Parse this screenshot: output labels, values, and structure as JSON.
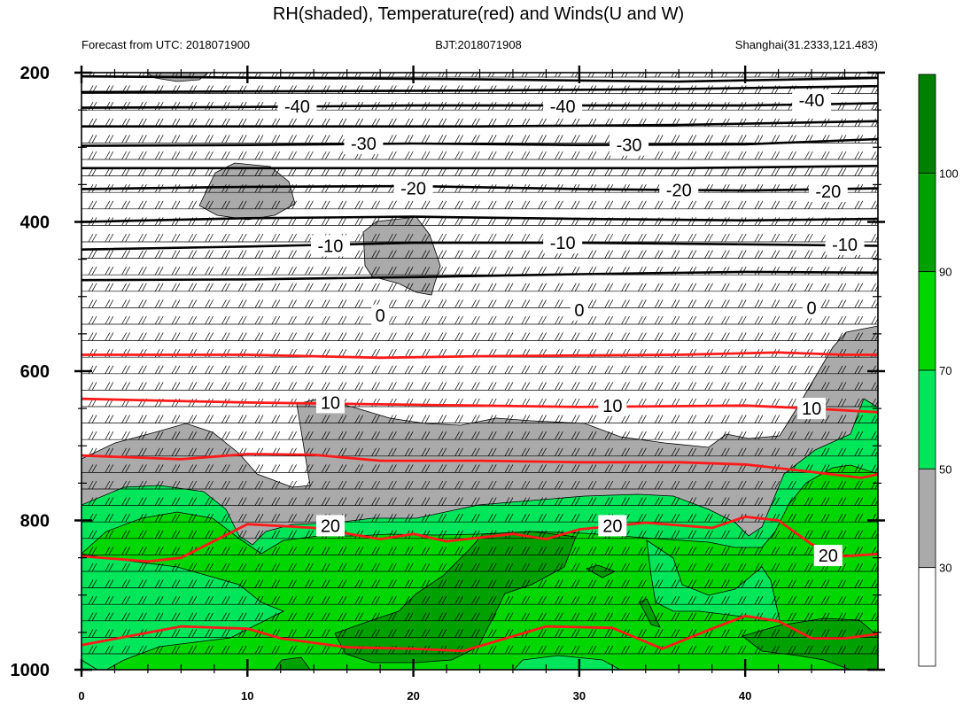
{
  "chart_data": {
    "type": "heatmap",
    "title": "RH(shaded), Temperature(red) and Winds(U and W)",
    "subtitle_left": "Forecast from UTC: 2018071900",
    "subtitle_center": "BJT:2018071908",
    "subtitle_right": "Shanghai(31.2333,121.483)",
    "xlim": [
      0,
      48
    ],
    "ylim": [
      1000,
      200
    ],
    "x_ticks": [
      "0",
      "10",
      "20",
      "30",
      "40"
    ],
    "x_tick_values": [
      0,
      10,
      20,
      30,
      40
    ],
    "y_ticks": [
      "200",
      "400",
      "600",
      "800",
      "1000"
    ],
    "y_tick_values": [
      200,
      400,
      600,
      800,
      1000
    ],
    "colorbar": {
      "labels": [
        "30",
        "50",
        "70",
        "90",
        "100"
      ],
      "level_values": [
        30,
        50,
        70,
        90,
        100
      ],
      "colors": [
        "#ffffff",
        "#aaaaaa",
        "#00e65a",
        "#00d700",
        "#00a000",
        "#008000"
      ]
    },
    "temperature_labels": [
      {
        "text": "-40",
        "x": 13,
        "p": 245,
        "color": "#000000"
      },
      {
        "text": "-40",
        "x": 29,
        "p": 245,
        "color": "#000000"
      },
      {
        "text": "-40",
        "x": 44,
        "p": 237,
        "color": "#000000"
      },
      {
        "text": "-30",
        "x": 17,
        "p": 295,
        "color": "#000000"
      },
      {
        "text": "-30",
        "x": 33,
        "p": 297,
        "color": "#000000"
      },
      {
        "text": "-20",
        "x": 20,
        "p": 355,
        "color": "#000000"
      },
      {
        "text": "-20",
        "x": 36,
        "p": 357,
        "color": "#000000"
      },
      {
        "text": "-20",
        "x": 45,
        "p": 359,
        "color": "#000000"
      },
      {
        "text": "-10",
        "x": 15,
        "p": 432,
        "color": "#000000"
      },
      {
        "text": "-10",
        "x": 29,
        "p": 428,
        "color": "#000000"
      },
      {
        "text": "-10",
        "x": 46,
        "p": 430,
        "color": "#000000"
      },
      {
        "text": "0",
        "x": 18,
        "p": 525,
        "color": "#000000"
      },
      {
        "text": "0",
        "x": 30,
        "p": 518,
        "color": "#000000"
      },
      {
        "text": "0",
        "x": 44,
        "p": 515,
        "color": "#000000"
      },
      {
        "text": "10",
        "x": 15,
        "p": 642,
        "color": "#000000"
      },
      {
        "text": "10",
        "x": 32,
        "p": 646,
        "color": "#000000"
      },
      {
        "text": "10",
        "x": 44,
        "p": 650,
        "color": "#000000"
      },
      {
        "text": "20",
        "x": 15,
        "p": 807,
        "color": "#000000"
      },
      {
        "text": "20",
        "x": 32,
        "p": 807,
        "color": "#000000"
      },
      {
        "text": "20",
        "x": 45,
        "p": 847,
        "color": "#000000"
      }
    ],
    "temperature_isotherms_black": [
      {
        "value": -45,
        "points": [
          [
            0,
            205
          ],
          [
            12,
            207
          ],
          [
            24,
            209
          ],
          [
            36,
            212
          ],
          [
            48,
            207
          ]
        ]
      },
      {
        "value": -45,
        "points": [
          [
            0,
            226
          ],
          [
            12,
            225
          ],
          [
            24,
            224
          ],
          [
            36,
            222
          ],
          [
            48,
            218
          ]
        ]
      },
      {
        "value": -40,
        "points": [
          [
            0,
            247
          ],
          [
            10,
            246
          ],
          [
            20,
            244
          ],
          [
            30,
            244
          ],
          [
            40,
            244
          ],
          [
            48,
            241
          ]
        ]
      },
      {
        "value": -35,
        "points": [
          [
            0,
            272
          ],
          [
            12,
            272
          ],
          [
            24,
            272
          ],
          [
            36,
            270
          ],
          [
            48,
            265
          ]
        ]
      },
      {
        "value": -30,
        "points": [
          [
            0,
            298
          ],
          [
            10,
            297
          ],
          [
            20,
            295
          ],
          [
            30,
            297
          ],
          [
            40,
            296
          ],
          [
            48,
            289
          ]
        ]
      },
      {
        "value": -25,
        "points": [
          [
            0,
            328
          ],
          [
            12,
            328
          ],
          [
            24,
            328
          ],
          [
            36,
            328
          ],
          [
            48,
            325
          ]
        ]
      },
      {
        "value": -20,
        "points": [
          [
            0,
            356
          ],
          [
            10,
            353
          ],
          [
            20,
            352
          ],
          [
            30,
            356
          ],
          [
            40,
            358
          ],
          [
            48,
            355
          ]
        ]
      },
      {
        "value": -15,
        "points": [
          [
            0,
            400
          ],
          [
            10,
            395
          ],
          [
            20,
            393
          ],
          [
            30,
            396
          ],
          [
            40,
            398
          ],
          [
            48,
            396
          ]
        ]
      },
      {
        "value": -10,
        "points": [
          [
            0,
            437
          ],
          [
            10,
            433
          ],
          [
            20,
            428
          ],
          [
            30,
            428
          ],
          [
            40,
            430
          ],
          [
            48,
            432
          ]
        ]
      },
      {
        "value": -5,
        "points": [
          [
            0,
            478
          ],
          [
            10,
            477
          ],
          [
            20,
            474
          ],
          [
            30,
            470
          ],
          [
            40,
            467
          ],
          [
            48,
            468
          ]
        ]
      }
    ],
    "temperature_isotherms_red": [
      {
        "value": 5,
        "points": [
          [
            0,
            578
          ],
          [
            10,
            578
          ],
          [
            18,
            582
          ],
          [
            24,
            580
          ],
          [
            36,
            578
          ],
          [
            42,
            575
          ],
          [
            46,
            578
          ],
          [
            48,
            578
          ]
        ]
      },
      {
        "value": 10,
        "points": [
          [
            0,
            637
          ],
          [
            10,
            642
          ],
          [
            20,
            645
          ],
          [
            30,
            648
          ],
          [
            40,
            646
          ],
          [
            44,
            650
          ],
          [
            48,
            655
          ]
        ]
      },
      {
        "value": 15,
        "points": [
          [
            0,
            713
          ],
          [
            6,
            718
          ],
          [
            10,
            711
          ],
          [
            14,
            712
          ],
          [
            18,
            720
          ],
          [
            24,
            720
          ],
          [
            30,
            722
          ],
          [
            36,
            722
          ],
          [
            40,
            725
          ],
          [
            44,
            735
          ],
          [
            47,
            743
          ],
          [
            48,
            738
          ]
        ]
      },
      {
        "value": 20,
        "points": [
          [
            0,
            848
          ],
          [
            4,
            855
          ],
          [
            6,
            850
          ],
          [
            10,
            805
          ],
          [
            14,
            810
          ],
          [
            18,
            825
          ],
          [
            20,
            818
          ],
          [
            22,
            828
          ],
          [
            26,
            818
          ],
          [
            28,
            825
          ],
          [
            30,
            812
          ],
          [
            34,
            803
          ],
          [
            38,
            810
          ],
          [
            40,
            795
          ],
          [
            42,
            800
          ],
          [
            44,
            832
          ],
          [
            46,
            848
          ],
          [
            48,
            845
          ]
        ]
      },
      {
        "value": 25,
        "points": [
          [
            0,
            967
          ],
          [
            6,
            942
          ],
          [
            10,
            945
          ],
          [
            12,
            958
          ],
          [
            16,
            970
          ],
          [
            20,
            972
          ],
          [
            23,
            975
          ],
          [
            28,
            942
          ],
          [
            32,
            944
          ],
          [
            35,
            972
          ],
          [
            38,
            945
          ],
          [
            40,
            928
          ],
          [
            42,
            935
          ],
          [
            44,
            958
          ],
          [
            46,
            958
          ],
          [
            48,
            952
          ]
        ]
      }
    ],
    "rh_regions": [
      {
        "level": "30-50",
        "note": "gray small cells aloft and moist layer below 700 hPa"
      },
      {
        "level": "50-70",
        "note": "light green below ~850 hPa"
      },
      {
        "level": "70-90",
        "note": "green near surface"
      },
      {
        "level": "90-100",
        "note": "dark green patches near 900-1000 hPa"
      }
    ]
  }
}
